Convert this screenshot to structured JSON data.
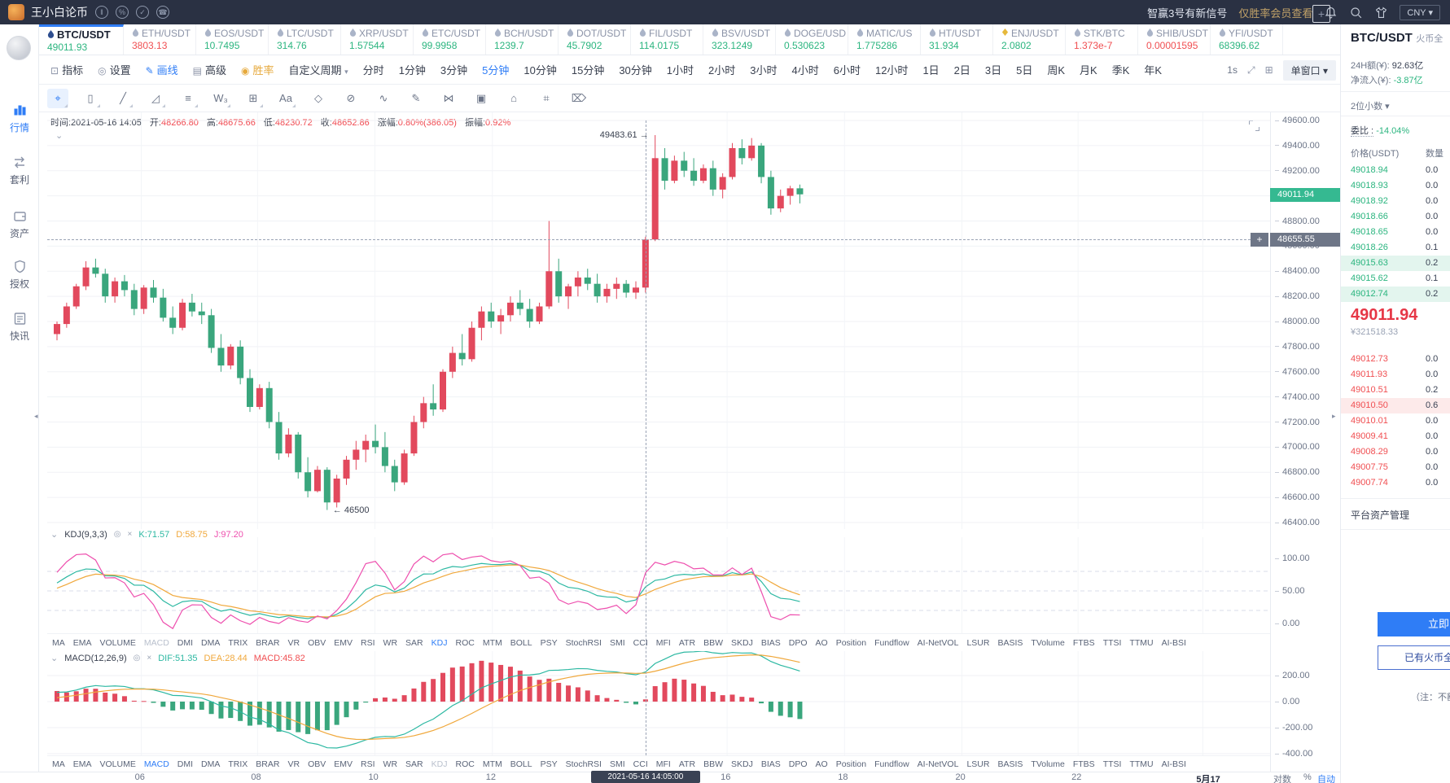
{
  "top_bar": {
    "app_title": "王小白论币",
    "signal_text": "智赢3号有新信号",
    "signal_hint": "仅胜率会员查看",
    "currency": "CNY ▾"
  },
  "left_sidebar": {
    "items": [
      {
        "label": "行情",
        "icon": "market-icon",
        "active": true
      },
      {
        "label": "套利",
        "icon": "arbitrage-icon",
        "active": false
      },
      {
        "label": "资产",
        "icon": "assets-icon",
        "active": false
      },
      {
        "label": "授权",
        "icon": "authorize-icon",
        "active": false
      },
      {
        "label": "快讯",
        "icon": "news-icon",
        "active": false
      }
    ]
  },
  "pair_tabs": {
    "add_button": "+",
    "tabs": [
      {
        "name": "BTC/USDT",
        "price": "49011.93",
        "color": "green",
        "active": true,
        "icon": "drop"
      },
      {
        "name": "ETH/USDT",
        "price": "3803.13",
        "color": "red",
        "icon": "drop"
      },
      {
        "name": "EOS/USDT",
        "price": "10.7495",
        "color": "green",
        "icon": "drop"
      },
      {
        "name": "LTC/USDT",
        "price": "314.76",
        "color": "green",
        "icon": "drop"
      },
      {
        "name": "XRP/USDT",
        "price": "1.57544",
        "color": "green",
        "icon": "drop"
      },
      {
        "name": "ETC/USDT",
        "price": "99.9958",
        "color": "green",
        "icon": "drop"
      },
      {
        "name": "BCH/USDT",
        "price": "1239.7",
        "color": "green",
        "icon": "drop"
      },
      {
        "name": "DOT/USDT",
        "price": "45.7902",
        "color": "green",
        "icon": "drop"
      },
      {
        "name": "FIL/USDT",
        "price": "114.0175",
        "color": "green",
        "icon": "drop"
      },
      {
        "name": "BSV/USDT",
        "price": "323.1249",
        "color": "green",
        "icon": "drop"
      },
      {
        "name": "DOGE/USD",
        "price": "0.530623",
        "color": "green",
        "icon": "drop"
      },
      {
        "name": "MATIC/US",
        "price": "1.775286",
        "color": "green",
        "icon": "drop"
      },
      {
        "name": "HT/USDT",
        "price": "31.934",
        "color": "green",
        "icon": "drop"
      },
      {
        "name": "ENJ/USDT",
        "price": "2.0802",
        "color": "green",
        "icon": "diamond"
      },
      {
        "name": "STK/BTC",
        "price": "1.373e-7",
        "color": "red",
        "icon": "drop"
      },
      {
        "name": "SHIB/USDT",
        "price": "0.00001595",
        "color": "red",
        "icon": "drop"
      },
      {
        "name": "YFI/USDT",
        "price": "68396.62",
        "color": "green",
        "icon": "drop"
      }
    ]
  },
  "toolbar": {
    "buttons": [
      {
        "label": "指标",
        "icon": "indicator-icon",
        "glyph": "⊡",
        "style": ""
      },
      {
        "label": "设置",
        "icon": "settings-icon",
        "glyph": "◎",
        "style": ""
      },
      {
        "label": "画线",
        "icon": "draw-icon",
        "glyph": "✎",
        "style": "tb-blue"
      },
      {
        "label": "高级",
        "icon": "advanced-icon",
        "glyph": "▤",
        "style": ""
      },
      {
        "label": "胜率",
        "icon": "winrate-icon",
        "glyph": "◉",
        "style": "tb-gold"
      }
    ],
    "period_dropdown": "自定义周期",
    "timeframes": [
      "分时",
      "1分钟",
      "3分钟",
      "5分钟",
      "10分钟",
      "15分钟",
      "30分钟",
      "1小时",
      "2小时",
      "3小时",
      "4小时",
      "6小时",
      "12小时",
      "1日",
      "2日",
      "3日",
      "5日",
      "周K",
      "月K",
      "季K",
      "年K"
    ],
    "active_timeframe": "5分钟",
    "right": {
      "res": "1s",
      "window_mode": "单窗口 ▾"
    }
  },
  "drawing_toolbar": {
    "tools": [
      "crosshair-tool",
      "candle-style-tool",
      "trend-line-tool",
      "triangle-tool",
      "parallel-lines-tool",
      "elliott-wave-tool",
      "grid-tool",
      "text-tool",
      "eraser-tool",
      "circle-erase-tool",
      "wave-brush-tool",
      "pencil-tool",
      "measure-tool",
      "pattern-tool",
      "frame-tool",
      "bookmark-tool",
      "delete-tool"
    ],
    "glyphs": [
      "⌖",
      "▯",
      "╱",
      "◿",
      "≡",
      "W₃",
      "⊞",
      "Aa",
      "◇",
      "⊘",
      "∿",
      "✎",
      "⋈",
      "▣",
      "⌂",
      "⌗",
      "⌦"
    ]
  },
  "ohlc_bar": {
    "time": "时间:2021-05-16 14:05",
    "open_label": "开:",
    "open": "48266.80",
    "high_label": "高:",
    "high": "48675.66",
    "low_label": "低:",
    "low": "48230.72",
    "close_label": "收:",
    "close": "48652.86",
    "change_label": "涨幅:",
    "change": "0.80%(386.05)",
    "amp_label": "振幅:",
    "amp": "0.92%"
  },
  "chart_data": {
    "type": "candlestick",
    "pair": "BTC/USDT",
    "interval": "5分钟",
    "up_color": "#e2495d",
    "down_color": "#3aa67d",
    "price_axis": {
      "min": 46400,
      "max": 49600,
      "step": 200,
      "hidden_label": 49000
    },
    "time_ticks": [
      {
        "label": "06",
        "f": 0.077
      },
      {
        "label": "08",
        "f": 0.172
      },
      {
        "label": "10",
        "f": 0.268
      },
      {
        "label": "12",
        "f": 0.364
      },
      {
        "label": "16",
        "f": 0.556
      },
      {
        "label": "18",
        "f": 0.652
      },
      {
        "label": "20",
        "f": 0.748
      },
      {
        "label": "22",
        "f": 0.843
      },
      {
        "label": "5月17",
        "f": 0.945,
        "bold": true
      }
    ],
    "candles": [
      [
        47900,
        48000,
        47850,
        47980
      ],
      [
        47980,
        48150,
        47950,
        48120
      ],
      [
        48120,
        48300,
        48100,
        48280
      ],
      [
        48280,
        48480,
        48250,
        48430
      ],
      [
        48430,
        48500,
        48350,
        48380
      ],
      [
        48380,
        48420,
        48150,
        48200
      ],
      [
        48200,
        48350,
        48150,
        48320
      ],
      [
        48320,
        48370,
        48200,
        48250
      ],
      [
        48250,
        48300,
        48050,
        48100
      ],
      [
        48100,
        48290,
        48060,
        48270
      ],
      [
        48270,
        48330,
        48150,
        48190
      ],
      [
        48190,
        48260,
        48000,
        48030
      ],
      [
        48030,
        48120,
        47900,
        47950
      ],
      [
        47950,
        48180,
        47930,
        48150
      ],
      [
        48150,
        48220,
        48040,
        48080
      ],
      [
        48080,
        48150,
        47980,
        48050
      ],
      [
        48050,
        48100,
        47750,
        47790
      ],
      [
        47790,
        47900,
        47600,
        47650
      ],
      [
        47650,
        47820,
        47620,
        47800
      ],
      [
        47800,
        47850,
        47500,
        47550
      ],
      [
        47550,
        47620,
        47280,
        47320
      ],
      [
        47320,
        47500,
        47300,
        47470
      ],
      [
        47470,
        47520,
        47150,
        47200
      ],
      [
        47200,
        47280,
        46900,
        46950
      ],
      [
        46950,
        47150,
        46920,
        47100
      ],
      [
        47100,
        47120,
        46750,
        46800
      ],
      [
        46800,
        46920,
        46600,
        46650
      ],
      [
        46650,
        46850,
        46640,
        46820
      ],
      [
        46820,
        46840,
        46500,
        46560
      ],
      [
        46560,
        46780,
        46520,
        46750
      ],
      [
        46750,
        46930,
        46700,
        46900
      ],
      [
        46900,
        47050,
        46820,
        46980
      ],
      [
        46980,
        47100,
        46880,
        47050
      ],
      [
        47050,
        47180,
        46950,
        47000
      ],
      [
        47000,
        47120,
        46800,
        46850
      ],
      [
        46850,
        46900,
        46650,
        46720
      ],
      [
        46720,
        46980,
        46700,
        46950
      ],
      [
        46950,
        47250,
        46930,
        47200
      ],
      [
        47200,
        47400,
        47150,
        47350
      ],
      [
        47350,
        47500,
        47250,
        47300
      ],
      [
        47300,
        47620,
        47280,
        47600
      ],
      [
        47600,
        47800,
        47550,
        47750
      ],
      [
        47750,
        47900,
        47650,
        47700
      ],
      [
        47700,
        48000,
        47680,
        47950
      ],
      [
        47950,
        48120,
        47850,
        48080
      ],
      [
        48080,
        48150,
        47950,
        48000
      ],
      [
        48000,
        48100,
        47900,
        48050
      ],
      [
        48050,
        48200,
        48000,
        48150
      ],
      [
        48150,
        48250,
        48050,
        48100
      ],
      [
        48100,
        48180,
        47950,
        48000
      ],
      [
        48000,
        48150,
        47980,
        48120
      ],
      [
        48120,
        48800,
        48100,
        48400
      ],
      [
        48400,
        48500,
        48150,
        48200
      ],
      [
        48200,
        48300,
        48100,
        48280
      ],
      [
        48280,
        48400,
        48200,
        48350
      ],
      [
        48350,
        48420,
        48250,
        48300
      ],
      [
        48300,
        48380,
        48150,
        48200
      ],
      [
        48200,
        48300,
        48150,
        48260
      ],
      [
        48260,
        48350,
        48180,
        48300
      ],
      [
        48300,
        48330,
        48190,
        48230
      ],
      [
        48230,
        48320,
        48180,
        48270
      ],
      [
        48270,
        48675,
        48230,
        48653
      ],
      [
        48653,
        49483,
        48640,
        49300
      ],
      [
        49300,
        49380,
        49050,
        49120
      ],
      [
        49120,
        49320,
        49100,
        49280
      ],
      [
        49280,
        49350,
        49150,
        49200
      ],
      [
        49200,
        49300,
        49080,
        49120
      ],
      [
        49120,
        49250,
        49100,
        49220
      ],
      [
        49220,
        49280,
        49000,
        49050
      ],
      [
        49050,
        49180,
        48980,
        49150
      ],
      [
        49150,
        49420,
        49130,
        49380
      ],
      [
        49380,
        49450,
        49250,
        49300
      ],
      [
        49300,
        49460,
        49280,
        49400
      ],
      [
        49400,
        49420,
        49100,
        49150
      ],
      [
        49150,
        49200,
        48850,
        48900
      ],
      [
        48900,
        49050,
        48870,
        49000
      ],
      [
        49000,
        49080,
        48930,
        49060
      ],
      [
        49060,
        49090,
        48940,
        49011.94
      ]
    ],
    "annotations": [
      {
        "text": "49483.61 →",
        "candle_index": 62,
        "price": 49483.61,
        "side": "left"
      },
      {
        "text": "← 46500",
        "candle_index": 28,
        "price": 46500,
        "side": "right"
      }
    ],
    "last_price": "49011.94",
    "crosshair": {
      "candle_index": 61,
      "price": 48655.55,
      "price_label": "48655.55",
      "time_label": "2021-05-16 14:05:00"
    },
    "kdj": {
      "title": "KDJ(9,3,3)",
      "k": "K:71.57",
      "d": "D:58.75",
      "j": "J:97.20",
      "axis": [
        100,
        50,
        0
      ],
      "ref_dashed": [
        80,
        50,
        20
      ]
    },
    "macd": {
      "title": "MACD(12,26,9)",
      "dif": "DIF:51.35",
      "dea": "DEA:28.44",
      "macd": "MACD:45.82",
      "axis": [
        200,
        0,
        -200,
        -400
      ]
    },
    "scale_options": {
      "log": "对数",
      "percent": "%",
      "auto": "自动"
    }
  },
  "indicator_tabs": {
    "items": [
      "MA",
      "EMA",
      "VOLUME",
      "MACD",
      "DMI",
      "DMA",
      "TRIX",
      "BRAR",
      "VR",
      "OBV",
      "EMV",
      "RSI",
      "WR",
      "SAR",
      "KDJ",
      "ROC",
      "MTM",
      "BOLL",
      "PSY",
      "StochRSI",
      "SMI",
      "CCI",
      "MFI",
      "ATR",
      "BBW",
      "SKDJ",
      "BIAS",
      "DPO",
      "AO",
      "Position",
      "Fundflow",
      "AI-NetVOL",
      "LSUR",
      "BASIS",
      "TVolume",
      "FTBS",
      "TTSI",
      "TTMU",
      "AI-BSI"
    ],
    "row1": {
      "active": "KDJ",
      "dimmed": [
        "MACD"
      ]
    },
    "row2": {
      "active": "MACD",
      "dimmed": [
        "KDJ"
      ]
    }
  },
  "order_panel": {
    "pair": "BTC/USDT",
    "exchange": "火币全",
    "vol_label": "24H额(¥):",
    "vol": "92.63亿",
    "inflow_label": "净流入(¥):",
    "inflow": "-3.87亿",
    "decimals": "2位小数 ▾",
    "ratio_label": "委比 :",
    "ratio": "-14.04%",
    "col_price": "价格(USDT)",
    "col_qty": "数量",
    "asks": [
      {
        "p": "49018.94",
        "q": "0.0"
      },
      {
        "p": "49018.93",
        "q": "0.0"
      },
      {
        "p": "49018.92",
        "q": "0.0"
      },
      {
        "p": "49018.66",
        "q": "0.0"
      },
      {
        "p": "49018.65",
        "q": "0.0"
      },
      {
        "p": "49018.26",
        "q": "0.1"
      },
      {
        "p": "49015.63",
        "q": "0.2",
        "hl": true
      },
      {
        "p": "49015.62",
        "q": "0.1"
      },
      {
        "p": "49012.74",
        "q": "0.2",
        "hl": true
      }
    ],
    "last": "49011.94",
    "last_cny": "¥321518.33",
    "bids": [
      {
        "p": "49012.73",
        "q": "0.0"
      },
      {
        "p": "49011.93",
        "q": "0.0"
      },
      {
        "p": "49010.51",
        "q": "0.2"
      },
      {
        "p": "49010.50",
        "q": "0.6",
        "hl": true
      },
      {
        "p": "49010.01",
        "q": "0.0"
      },
      {
        "p": "49009.41",
        "q": "0.0"
      },
      {
        "p": "49008.29",
        "q": "0.0"
      },
      {
        "p": "49007.75",
        "q": "0.0"
      },
      {
        "p": "49007.74",
        "q": "0.0"
      }
    ],
    "footer": "平台资产管理",
    "cta_primary": "立即",
    "cta_secondary": "已有火币全球站",
    "note": "（注：不额外"
  }
}
